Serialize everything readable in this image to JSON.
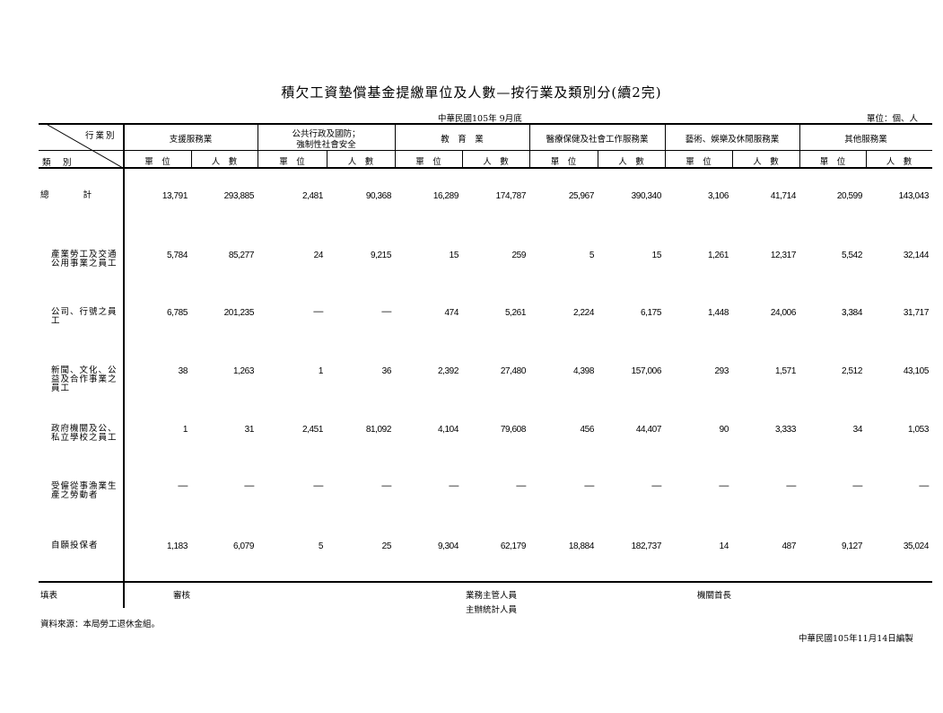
{
  "title": "積欠工資墊償基金提繳單位及人數—按行業及類別分(續2完)",
  "date_line": "中華民國105年 9月底",
  "unit_line": "單位：個、人",
  "stub_top": "行業別",
  "stub_bottom": "類　別",
  "industries": [
    {
      "name": "支援服務業"
    },
    {
      "name": "公共行政及國防；",
      "name2": "強制性社會安全"
    },
    {
      "name": "教　育　業"
    },
    {
      "name": "醫療保健及社會工作服務業"
    },
    {
      "name": "藝術、娛樂及休閒服務業"
    },
    {
      "name": "其他服務業"
    }
  ],
  "sub_units": "單　位",
  "sub_persons": "人　數",
  "rows": [
    {
      "label": "總　　　　計",
      "values": [
        "13,791",
        "293,885",
        "2,481",
        "90,368",
        "16,289",
        "174,787",
        "25,967",
        "390,340",
        "3,106",
        "41,714",
        "20,599",
        "143,043"
      ]
    },
    {
      "label": "產業勞工及交通公用事業之員工",
      "values": [
        "5,784",
        "85,277",
        "24",
        "9,215",
        "15",
        "259",
        "5",
        "15",
        "1,261",
        "12,317",
        "5,542",
        "32,144"
      ]
    },
    {
      "label": "公司、行號之員工",
      "values": [
        "6,785",
        "201,235",
        "—",
        "—",
        "474",
        "5,261",
        "2,224",
        "6,175",
        "1,448",
        "24,006",
        "3,384",
        "31,717"
      ]
    },
    {
      "label": "新聞、文化、公益及合作事業之員工",
      "values": [
        "38",
        "1,263",
        "1",
        "36",
        "2,392",
        "27,480",
        "4,398",
        "157,006",
        "293",
        "1,571",
        "2,512",
        "43,105"
      ]
    },
    {
      "label": "政府機關及公、私立學校之員工",
      "values": [
        "1",
        "31",
        "2,451",
        "81,092",
        "4,104",
        "79,608",
        "456",
        "44,407",
        "90",
        "3,333",
        "34",
        "1,053"
      ]
    },
    {
      "label": "受僱從事漁業生產之勞動者",
      "values": [
        "—",
        "—",
        "—",
        "—",
        "—",
        "—",
        "—",
        "—",
        "—",
        "—",
        "—",
        "—"
      ]
    },
    {
      "label": "自願投保者",
      "values": [
        "1,183",
        "6,079",
        "5",
        "25",
        "9,304",
        "62,179",
        "18,884",
        "182,737",
        "14",
        "487",
        "9,127",
        "35,024"
      ]
    }
  ],
  "footer": {
    "fill": "填表",
    "review": "審核",
    "business_chief": "業務主管人員",
    "stats_chief": "主辦統計人員",
    "agency_head": "機關首長",
    "source": "資料來源：本局勞工退休金組。",
    "compiled": "中華民國105年11月14日編製"
  }
}
